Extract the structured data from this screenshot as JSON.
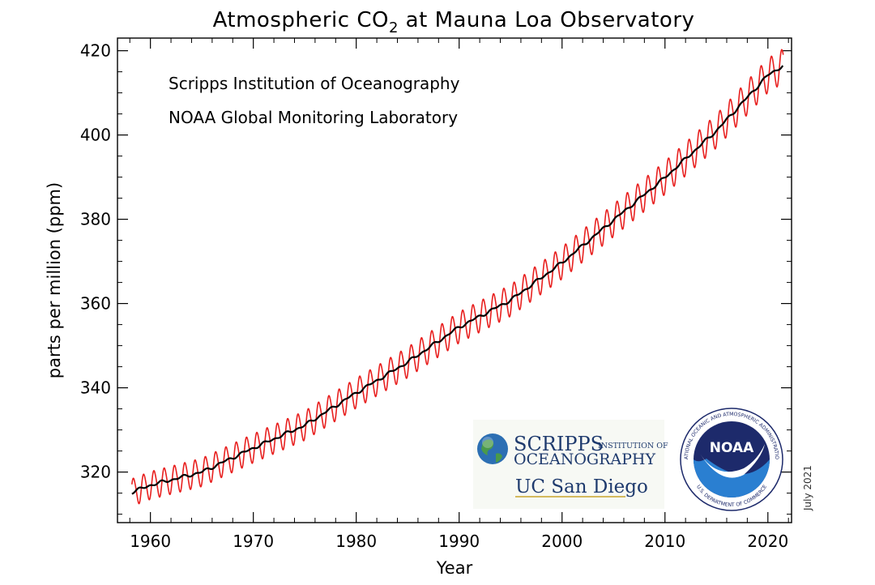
{
  "chart_data": {
    "type": "line",
    "title_prefix": "Atmospheric CO",
    "title_subscript": "2",
    "title_suffix": " at Mauna Loa Observatory",
    "annotations": [
      "Scripps Institution of Oceanography",
      "NOAA Global Monitoring Laboratory"
    ],
    "xlabel": "Year",
    "ylabel": "parts per million (ppm)",
    "xlim": [
      1956.8,
      2022.3
    ],
    "ylim": [
      308,
      423
    ],
    "x_ticks": [
      1960,
      1970,
      1980,
      1990,
      2000,
      2010,
      2020
    ],
    "y_ticks": [
      320,
      340,
      360,
      380,
      400,
      420
    ],
    "seasonal_amplitude_ppm": 3.2,
    "series": [
      {
        "color": "#e8201f",
        "style": "monthly mean with seasonal cycle"
      },
      {
        "color": "#000000",
        "style": "seasonally adjusted trend",
        "x": [
          1958.2,
          1960,
          1965,
          1970,
          1975,
          1980,
          1985,
          1990,
          1995,
          2000,
          2005,
          2010,
          2015,
          2020,
          2021.5
        ],
        "y": [
          315.2,
          316.9,
          320.0,
          325.7,
          331.1,
          338.8,
          346.1,
          354.4,
          360.8,
          369.7,
          379.8,
          389.9,
          401.0,
          414.2,
          416.5
        ]
      }
    ]
  },
  "logos": {
    "scripps_main": "SCRIPPS",
    "scripps_inst": "INSTITUTION OF",
    "scripps_ocean": "OCEANOGRAPHY",
    "ucsd": "UC San Diego",
    "noaa": "NOAA",
    "noaa_ring_top": "NATIONAL OCEANIC AND ATMOSPHERIC ADMINISTRATION",
    "noaa_ring_bottom": "U.S. DEPARTMENT OF COMMERCE"
  },
  "date_stamp": "July 2021",
  "colors": {
    "monthly": "#e8201f",
    "trend": "#000000",
    "noaa_navy": "#1d2a6b",
    "noaa_blue": "#2a7fd1"
  }
}
